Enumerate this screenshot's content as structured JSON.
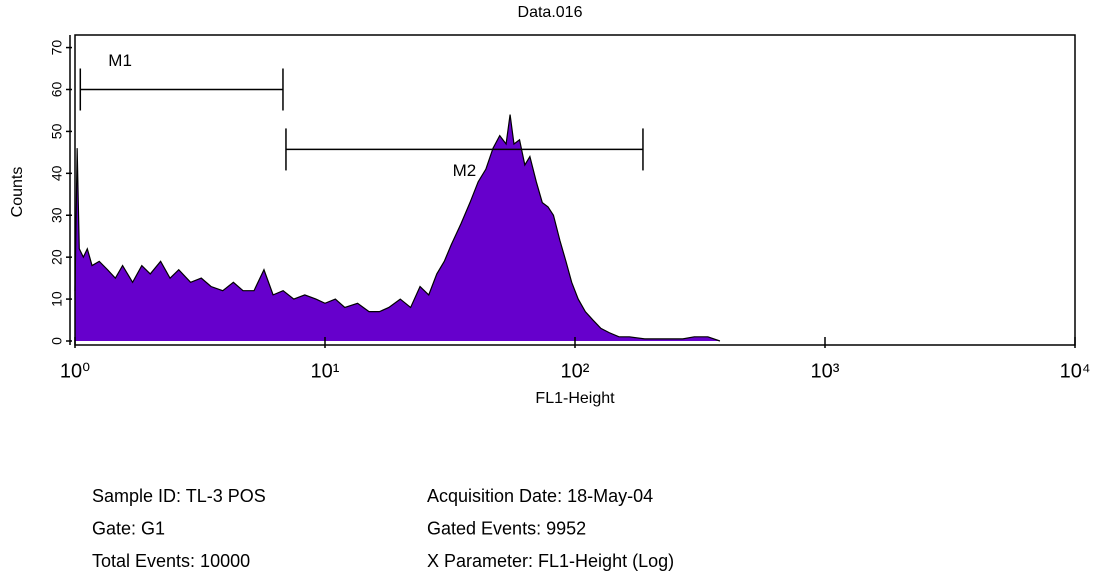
{
  "chart_data": {
    "type": "area",
    "title": "Data.016",
    "x_label": "FL1-Height",
    "y_label": "Counts",
    "log_x": true,
    "color": "#6600cc",
    "outline": "#000000",
    "xlim": [
      1,
      10000
    ],
    "xticks": [
      {
        "value": 1,
        "label": "10⁰"
      },
      {
        "value": 10,
        "label": "10¹"
      },
      {
        "value": 100,
        "label": "10²"
      },
      {
        "value": 1000,
        "label": "10³"
      },
      {
        "value": 10000,
        "label": "10⁴"
      }
    ],
    "ylim": [
      0,
      73
    ],
    "yticks": [
      0,
      10,
      20,
      30,
      40,
      50,
      60,
      70
    ],
    "x": [
      1.0,
      1.02,
      1.04,
      1.08,
      1.12,
      1.17,
      1.25,
      1.35,
      1.45,
      1.55,
      1.7,
      1.85,
      2.0,
      2.2,
      2.4,
      2.6,
      2.9,
      3.2,
      3.5,
      3.9,
      4.3,
      4.7,
      5.2,
      5.7,
      6.2,
      6.8,
      7.5,
      8.3,
      9.2,
      10,
      11,
      12,
      13.5,
      15,
      16.5,
      18,
      20,
      22,
      24,
      26,
      28,
      30,
      32,
      35,
      38,
      41,
      44,
      47,
      50,
      53,
      55,
      57,
      60,
      63,
      66,
      70,
      74,
      78,
      82,
      87,
      92,
      97,
      103,
      110,
      118,
      127,
      137,
      150,
      165,
      190,
      230,
      270,
      300,
      340,
      380
    ],
    "values": [
      12,
      46,
      22,
      20,
      22,
      18,
      19,
      17,
      15,
      18,
      14,
      18,
      16,
      19,
      15,
      17,
      14,
      15,
      13,
      12,
      14,
      12,
      12,
      17,
      11,
      12,
      10,
      11,
      10,
      9,
      10,
      8,
      9,
      7,
      7,
      8,
      10,
      8,
      13,
      11,
      16,
      19,
      23,
      28,
      33,
      38,
      41,
      46,
      49,
      47,
      54,
      47,
      48,
      42,
      44,
      38,
      33,
      32,
      30,
      24,
      19,
      14,
      10,
      7,
      5,
      3,
      2,
      1,
      1,
      0.5,
      0.5,
      0.5,
      1,
      1,
      0
    ],
    "markers": [
      {
        "label": "M1",
        "range": [
          1.05,
          6.79
        ],
        "y": 60
      },
      {
        "label": "M2",
        "range": [
          6.98,
          187
        ],
        "y": 45.7
      }
    ]
  },
  "info": [
    [
      "Sample ID: TL-3 POS",
      "Acquisition Date: 18-May-04"
    ],
    [
      "Gate: G1",
      "Gated Events: 9952"
    ],
    [
      "Total Events: 10000",
      "X Parameter: FL1-Height (Log)"
    ]
  ]
}
